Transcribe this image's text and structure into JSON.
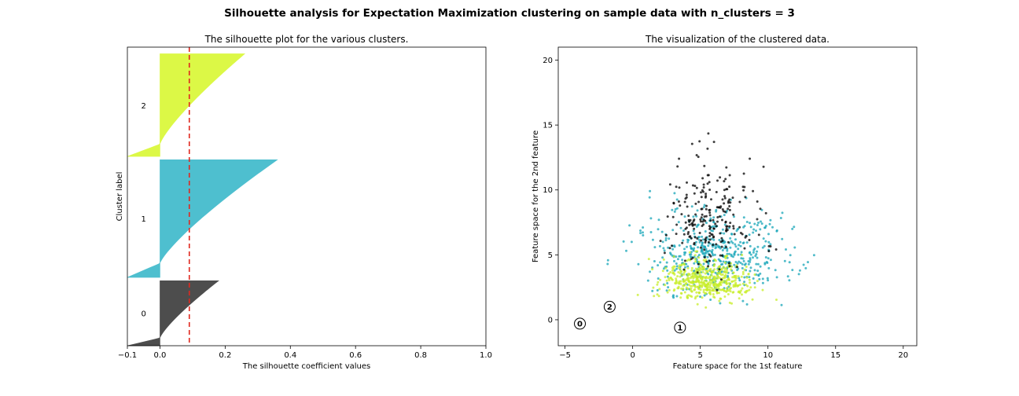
{
  "figure": {
    "suptitle": "Silhouette analysis for Expectation Maximization clustering on sample data with n_clusters = 3"
  },
  "colors": {
    "cluster_0": "#4d4d4d",
    "cluster_1": "#4ebfcf",
    "cluster_2": "#dcf846",
    "average_line": "#e0271f"
  },
  "chart_data": [
    {
      "type": "area",
      "title": "The silhouette plot for the various clusters.",
      "xlabel": "The silhouette coefficient values",
      "ylabel": "Cluster label",
      "xlim": [
        -0.1,
        1.0
      ],
      "xticks": [
        "−0.1",
        "0.0",
        "0.2",
        "0.4",
        "0.6",
        "0.8",
        "1.0"
      ],
      "xtick_values": [
        -0.1,
        0.0,
        0.2,
        0.4,
        0.6,
        0.8,
        1.0
      ],
      "grid": false,
      "average_silhouette": 0.09,
      "clusters": [
        {
          "label": "0",
          "color": "#4d4d4d",
          "size": 195,
          "min": -0.1,
          "max": 0.18
        },
        {
          "label": "1",
          "color": "#4ebfcf",
          "size": 353,
          "min": -0.1,
          "max": 0.36
        },
        {
          "label": "2",
          "color": "#dcf846",
          "size": 308,
          "min": -0.1,
          "max": 0.26
        }
      ]
    },
    {
      "type": "scatter",
      "title": "The visualization of the clustered data.",
      "xlabel": "Feature space for the 1st feature",
      "ylabel": "Feature space for the 2nd feature",
      "xlim": [
        -5.5,
        21
      ],
      "ylim": [
        -2,
        21
      ],
      "xticks": [
        "−5",
        "0",
        "5",
        "10",
        "15",
        "20"
      ],
      "xtick_values": [
        -5,
        0,
        5,
        10,
        15,
        20
      ],
      "yticks": [
        "0",
        "5",
        "10",
        "15",
        "20"
      ],
      "ytick_values": [
        0,
        5,
        10,
        15,
        20
      ],
      "grid": false,
      "centers": [
        {
          "label": "0",
          "x": -3.9,
          "y": -0.3
        },
        {
          "label": "1",
          "x": 3.5,
          "y": -0.6
        },
        {
          "label": "2",
          "x": -1.7,
          "y": 1.0
        }
      ],
      "series": [
        {
          "cluster": "0",
          "color": "#000000",
          "center_x": 5.8,
          "center_y": 6.8,
          "spread_x": 1.6,
          "spread_y": 2.6,
          "n": 230
        },
        {
          "cluster": "1",
          "color": "#17a5b8",
          "center_x": 6.2,
          "center_y": 4.2,
          "spread_x": 2.6,
          "spread_y": 2.0,
          "n": 520
        },
        {
          "cluster": "2",
          "color": "#c8ee2a",
          "center_x": 5.4,
          "center_y": 2.6,
          "spread_x": 1.6,
          "spread_y": 1.0,
          "n": 480
        }
      ]
    }
  ]
}
